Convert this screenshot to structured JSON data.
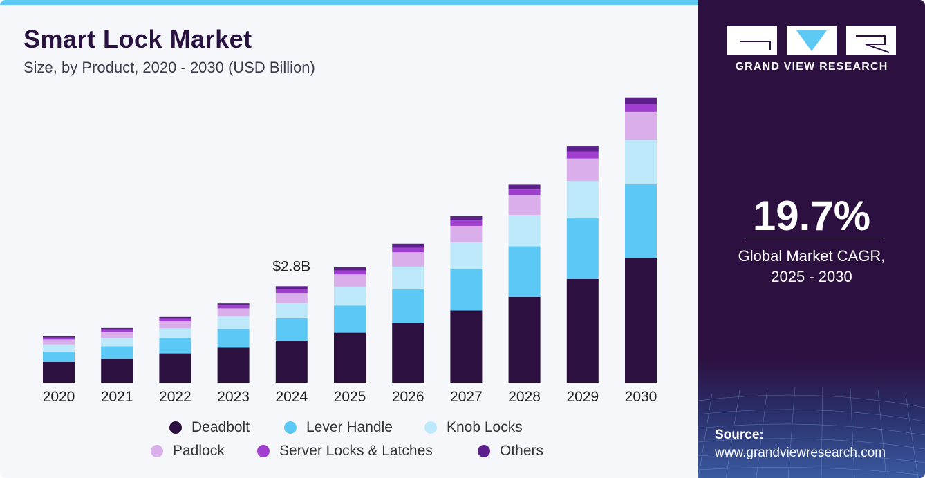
{
  "header": {
    "title": "Smart Lock Market",
    "subtitle": "Size, by Product, 2020 - 2030 (USD Billion)"
  },
  "colors": {
    "Deadbolt": "#2b1040",
    "Lever Handle": "#5bc8f5",
    "Knob Locks": "#bde9fb",
    "Padlock": "#d9aeea",
    "Server Locks & Latches": "#a03ed0",
    "Others": "#5c1f8c",
    "accent_bar": "#5ccaf5",
    "panel": "#2c1140"
  },
  "chart_data": {
    "type": "bar",
    "stacked": true,
    "title": "Smart Lock Market",
    "subtitle": "Size, by Product, 2020 - 2030 (USD Billion)",
    "categories": [
      "2020",
      "2021",
      "2022",
      "2023",
      "2024",
      "2025",
      "2026",
      "2027",
      "2028",
      "2029",
      "2030"
    ],
    "series": [
      {
        "name": "Deadbolt",
        "values": [
          0.58,
          0.68,
          0.82,
          0.98,
          1.18,
          1.4,
          1.67,
          2.02,
          2.4,
          2.9,
          3.5
        ]
      },
      {
        "name": "Lever Handle",
        "values": [
          0.29,
          0.34,
          0.42,
          0.52,
          0.62,
          0.76,
          0.94,
          1.15,
          1.42,
          1.7,
          2.05
        ]
      },
      {
        "name": "Knob Locks",
        "values": [
          0.2,
          0.23,
          0.28,
          0.35,
          0.43,
          0.53,
          0.64,
          0.76,
          0.88,
          1.04,
          1.25
        ]
      },
      {
        "name": "Padlock",
        "values": [
          0.14,
          0.17,
          0.2,
          0.23,
          0.28,
          0.34,
          0.4,
          0.46,
          0.55,
          0.63,
          0.78
        ]
      },
      {
        "name": "Server Locks & Latches",
        "values": [
          0.05,
          0.06,
          0.07,
          0.08,
          0.11,
          0.11,
          0.13,
          0.15,
          0.16,
          0.19,
          0.22
        ]
      },
      {
        "name": "Others",
        "values": [
          0.04,
          0.05,
          0.05,
          0.06,
          0.08,
          0.09,
          0.11,
          0.12,
          0.13,
          0.15,
          0.17
        ]
      }
    ],
    "ylim": [
      0,
      8.1
    ],
    "annotations": [
      {
        "category": "2024",
        "text": "$2.8B"
      }
    ],
    "grid": false,
    "legend": "bottom"
  },
  "legend": {
    "items": [
      "Deadbolt",
      "Lever Handle",
      "Knob Locks",
      "Padlock",
      "Server Locks & Latches",
      "Others"
    ]
  },
  "sidebar": {
    "brand": "GRAND VIEW RESEARCH",
    "cagr_value": "19.7%",
    "cagr_label_line1": "Global Market CAGR,",
    "cagr_label_line2": "2025 - 2030",
    "source_title": "Source:",
    "source_url": "www.grandviewresearch.com"
  }
}
